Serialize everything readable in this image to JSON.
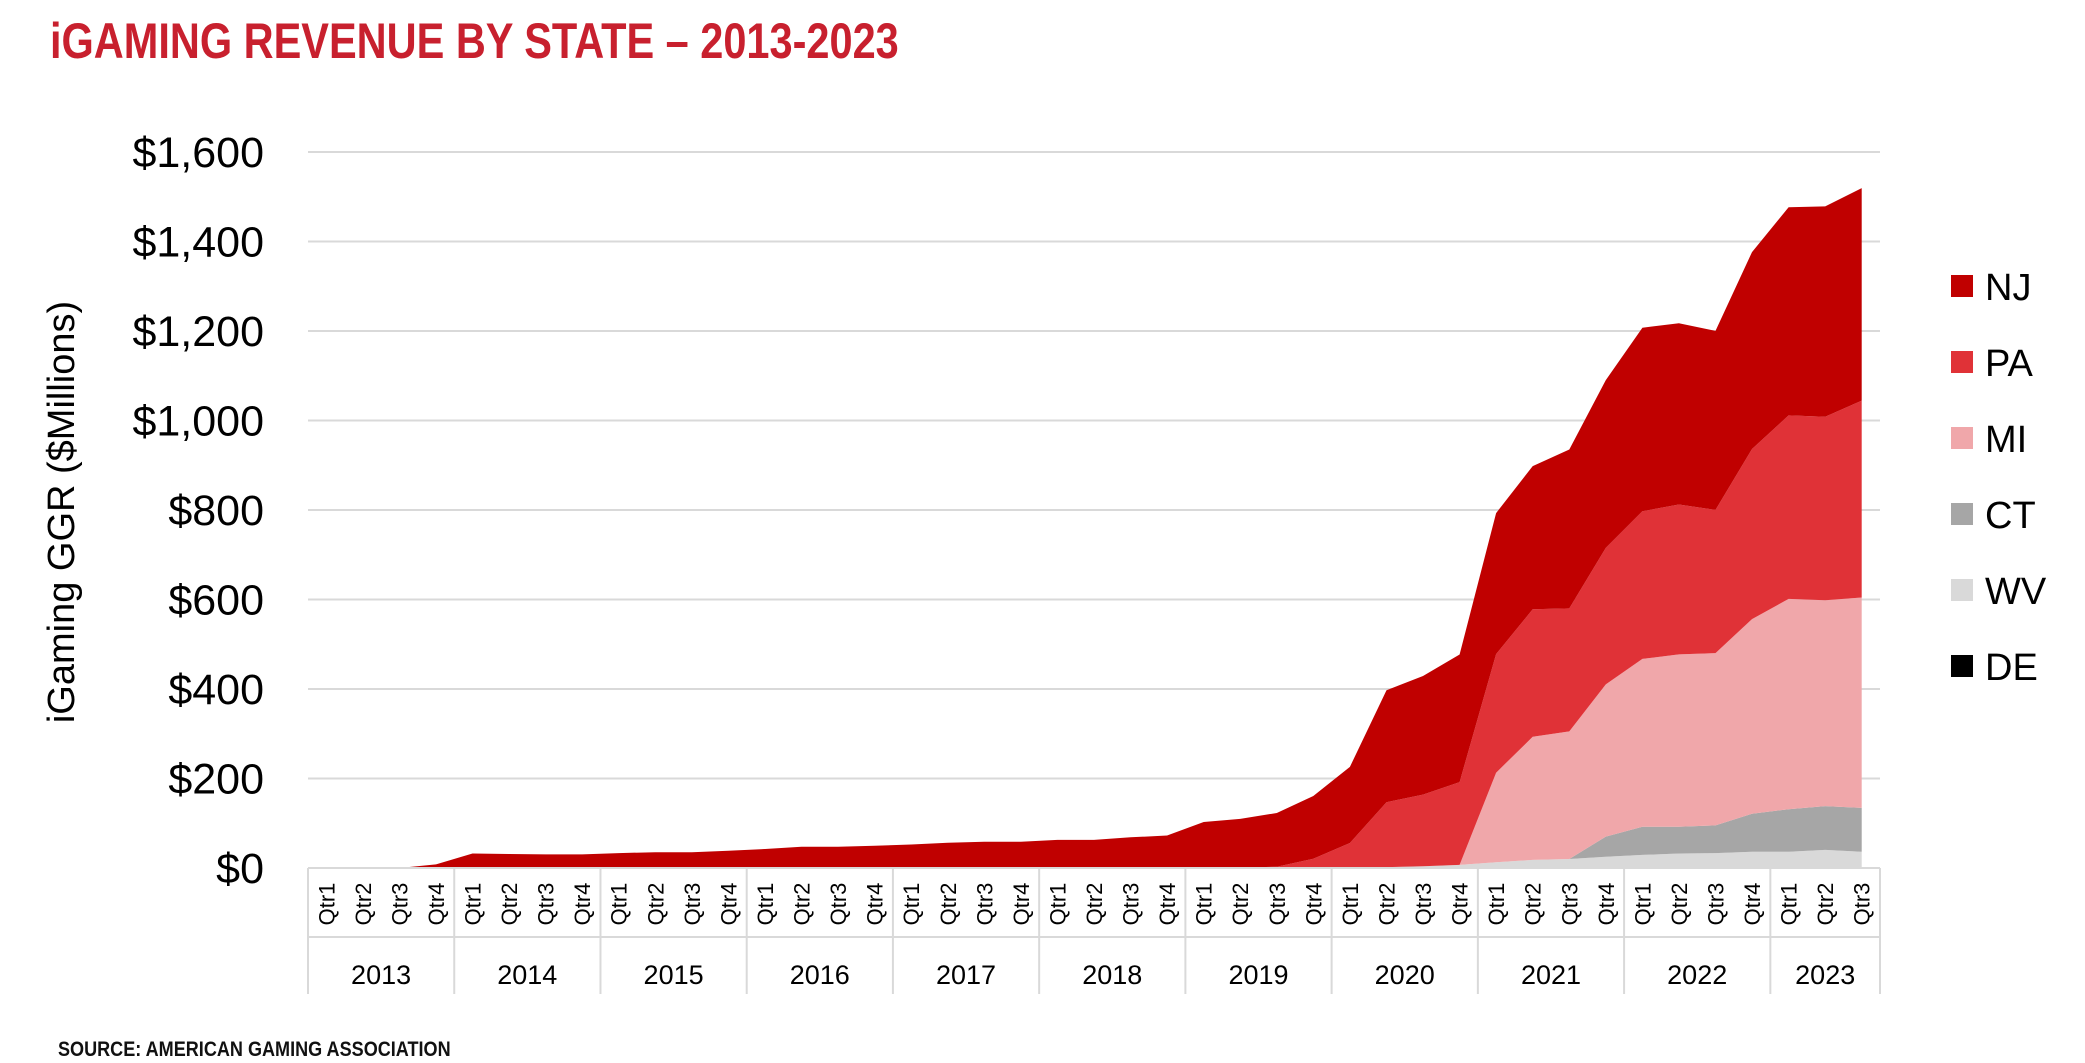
{
  "header": {
    "title": "iGAMING REVENUE BY STATE – 2013-2023"
  },
  "footer": {
    "source": "SOURCE: AMERICAN GAMING ASSOCIATION"
  },
  "chart_data": {
    "type": "area",
    "stacked": true,
    "title": "iGAMING REVENUE BY STATE – 2013-2023",
    "ylabel": "iGaming GGR ($Millions)",
    "xlabel": "",
    "ylim": [
      0,
      1600
    ],
    "yticks": [
      "$0",
      "$200",
      "$400",
      "$600",
      "$800",
      "$1,000",
      "$1,200",
      "$1,400",
      "$1,600"
    ],
    "grid": true,
    "legend_position": "right",
    "years": [
      "2013",
      "2014",
      "2015",
      "2016",
      "2017",
      "2018",
      "2019",
      "2020",
      "2021",
      "2022",
      "2023"
    ],
    "quarter_labels": [
      "Qtr1",
      "Qtr2",
      "Qtr3",
      "Qtr4"
    ],
    "categories": [
      "2013 Qtr1",
      "2013 Qtr2",
      "2013 Qtr3",
      "2013 Qtr4",
      "2014 Qtr1",
      "2014 Qtr2",
      "2014 Qtr3",
      "2014 Qtr4",
      "2015 Qtr1",
      "2015 Qtr2",
      "2015 Qtr3",
      "2015 Qtr4",
      "2016 Qtr1",
      "2016 Qtr2",
      "2016 Qtr3",
      "2016 Qtr4",
      "2017 Qtr1",
      "2017 Qtr2",
      "2017 Qtr3",
      "2017 Qtr4",
      "2018 Qtr1",
      "2018 Qtr2",
      "2018 Qtr3",
      "2018 Qtr4",
      "2019 Qtr1",
      "2019 Qtr2",
      "2019 Qtr3",
      "2019 Qtr4",
      "2020 Qtr1",
      "2020 Qtr2",
      "2020 Qtr3",
      "2020 Qtr4",
      "2021 Qtr1",
      "2021 Qtr2",
      "2021 Qtr3",
      "2021 Qtr4",
      "2022 Qtr1",
      "2022 Qtr2",
      "2022 Qtr3",
      "2022 Qtr4",
      "2023 Qtr1",
      "2023 Qtr2",
      "2023 Qtr3"
    ],
    "series": [
      {
        "name": "DE",
        "color": "#000000",
        "values": [
          0,
          0,
          0,
          0,
          0.3,
          0.3,
          0.3,
          0.3,
          0.4,
          0.4,
          0.4,
          0.4,
          0.5,
          0.5,
          0.5,
          0.5,
          0.6,
          0.6,
          0.6,
          0.6,
          0.7,
          0.7,
          0.7,
          0.7,
          0.8,
          0.8,
          0.8,
          0.8,
          0.9,
          1,
          1,
          1,
          1,
          1.2,
          1.2,
          1.2,
          1.3,
          1.3,
          1.3,
          1.3,
          1.4,
          1.4,
          1.4
        ]
      },
      {
        "name": "WV",
        "color": "#d9d9d9",
        "values": [
          0,
          0,
          0,
          0,
          0,
          0,
          0,
          0,
          0,
          0,
          0,
          0,
          0,
          0,
          0,
          0,
          0,
          0,
          0,
          0,
          0,
          0,
          0,
          0,
          0,
          0,
          0,
          0,
          0,
          1,
          3,
          6,
          12,
          17,
          19,
          24,
          28,
          31,
          32,
          35,
          35,
          39,
          35
        ]
      },
      {
        "name": "CT",
        "color": "#a6a6a6",
        "values": [
          0,
          0,
          0,
          0,
          0,
          0,
          0,
          0,
          0,
          0,
          0,
          0,
          0,
          0,
          0,
          0,
          0,
          0,
          0,
          0,
          0,
          0,
          0,
          0,
          0,
          0,
          0,
          0,
          0,
          0,
          0,
          0,
          0,
          0,
          0,
          45,
          63,
          60,
          62,
          85,
          95,
          98,
          98
        ]
      },
      {
        "name": "MI",
        "color": "#f0a7aa",
        "values": [
          0,
          0,
          0,
          0,
          0,
          0,
          0,
          0,
          0,
          0,
          0,
          0,
          0,
          0,
          0,
          0,
          0,
          0,
          0,
          0,
          0,
          0,
          0,
          0,
          0,
          0,
          0,
          0,
          0,
          0,
          0,
          0,
          200,
          275,
          285,
          340,
          375,
          385,
          385,
          435,
          470,
          460,
          470
        ]
      },
      {
        "name": "PA",
        "color": "#e03237",
        "values": [
          0,
          0,
          0,
          0,
          0,
          0,
          0,
          0,
          0,
          0,
          0,
          0,
          0,
          0,
          0,
          0,
          0,
          0,
          0,
          0,
          0,
          0,
          0,
          0,
          0,
          0,
          2,
          20,
          55,
          145,
          160,
          185,
          265,
          285,
          275,
          305,
          330,
          335,
          320,
          380,
          410,
          410,
          440
        ]
      },
      {
        "name": "NJ",
        "color": "#c00000",
        "values": [
          0,
          0,
          0,
          8,
          32,
          31,
          30,
          30,
          33,
          35,
          35,
          38,
          42,
          47,
          47,
          49,
          52,
          56,
          58,
          58,
          62,
          62,
          68,
          72,
          102,
          109,
          120,
          140,
          170,
          250,
          265,
          285,
          315,
          320,
          355,
          375,
          410,
          405,
          400,
          440,
          465,
          470,
          475
        ]
      }
    ],
    "legend_order": [
      "NJ",
      "PA",
      "MI",
      "CT",
      "WV",
      "DE"
    ]
  }
}
